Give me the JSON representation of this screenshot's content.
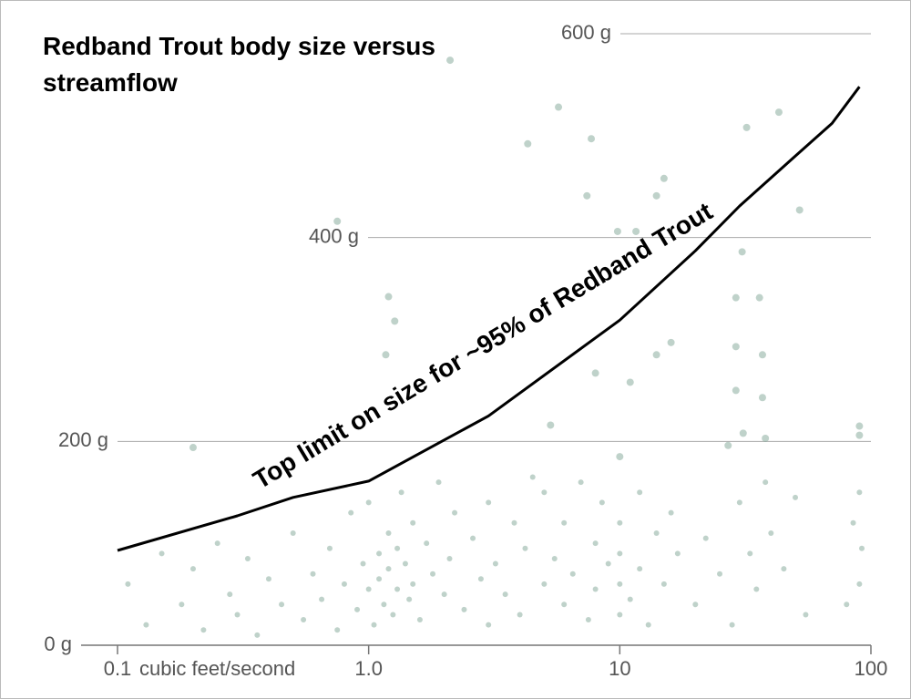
{
  "chart_data": {
    "type": "scatter",
    "title": "Redband Trout body size versus streamflow",
    "x_label": "cubic feet/second",
    "annotation": "Top limit on size for ~95% of Redband Trout",
    "log_x": true,
    "grid": true,
    "xlim": [
      0.1,
      100
    ],
    "ylim": [
      0,
      600
    ],
    "xticks": [
      0.1,
      {
        "value": 1,
        "label": "1.0"
      },
      10,
      100
    ],
    "yticks": [
      {
        "value": 0,
        "label": "0 g"
      },
      {
        "value": 200,
        "label": "200 g"
      },
      {
        "value": 400,
        "label": "400 g"
      },
      {
        "value": 600,
        "label": "600 g"
      }
    ],
    "points": {
      "color": "#7fa596",
      "x": [
        2.11,
        5.7,
        4.3,
        7.7,
        43,
        32,
        52,
        0.75,
        15,
        14,
        7.4,
        9.8,
        11.6,
        30.7,
        29,
        36,
        1.2,
        1.27,
        1.17,
        29,
        37,
        14,
        16,
        8,
        11,
        29,
        37,
        5.3,
        31,
        90,
        90,
        38,
        0.2,
        10,
        27,
        0.11,
        0.13,
        0.15,
        0.18,
        0.2,
        0.22,
        0.25,
        0.28,
        0.3,
        0.33,
        0.36,
        0.4,
        0.45,
        0.5,
        0.55,
        0.6,
        0.65,
        0.7,
        0.75,
        0.8,
        0.85,
        0.9,
        0.95,
        1,
        1,
        1.05,
        1.1,
        1.1,
        1.15,
        1.2,
        1.2,
        1.25,
        1.3,
        1.3,
        1.35,
        1.4,
        1.45,
        1.5,
        1.5,
        1.6,
        1.7,
        1.8,
        1.9,
        2,
        2.1,
        2.2,
        2.4,
        2.6,
        2.8,
        3,
        3,
        3.2,
        3.5,
        3.8,
        4,
        4.2,
        4.5,
        5,
        5,
        5.5,
        6,
        6,
        6.5,
        7,
        7.5,
        8,
        8,
        8.5,
        9,
        10,
        10,
        10,
        10,
        11,
        12,
        12,
        13,
        14,
        15,
        16,
        17,
        20,
        22,
        25,
        28,
        30,
        33,
        35,
        38,
        40,
        45,
        50,
        55,
        80,
        85,
        90,
        90,
        92
      ],
      "y": [
        574,
        528,
        492,
        497,
        523,
        508,
        427,
        416,
        458,
        441,
        441,
        406,
        406,
        386,
        341,
        341,
        342,
        318,
        285,
        293,
        285,
        285,
        297,
        267,
        258,
        250,
        243,
        216,
        208,
        215,
        206,
        203,
        194,
        185,
        196,
        60,
        20,
        90,
        40,
        75,
        15,
        100,
        50,
        30,
        85,
        10,
        65,
        40,
        110,
        25,
        70,
        45,
        95,
        15,
        60,
        130,
        35,
        80,
        55,
        140,
        20,
        90,
        65,
        40,
        110,
        75,
        30,
        95,
        55,
        150,
        80,
        45,
        120,
        60,
        25,
        100,
        70,
        160,
        50,
        85,
        130,
        35,
        105,
        65,
        20,
        140,
        80,
        50,
        120,
        30,
        95,
        165,
        60,
        150,
        85,
        40,
        120,
        70,
        160,
        25,
        100,
        55,
        140,
        80,
        30,
        60,
        90,
        120,
        45,
        150,
        75,
        20,
        110,
        60,
        130,
        90,
        40,
        105,
        70,
        20,
        140,
        90,
        55,
        160,
        110,
        75,
        145,
        30,
        40,
        120,
        150,
        60,
        95
      ]
    },
    "curve": {
      "color": "#000000",
      "x": [
        0.1,
        0.3,
        0.5,
        1,
        3,
        10,
        20,
        30,
        50,
        70,
        90
      ],
      "y": [
        93,
        127,
        145,
        161,
        225,
        319,
        387,
        431,
        480,
        512,
        548
      ]
    }
  }
}
